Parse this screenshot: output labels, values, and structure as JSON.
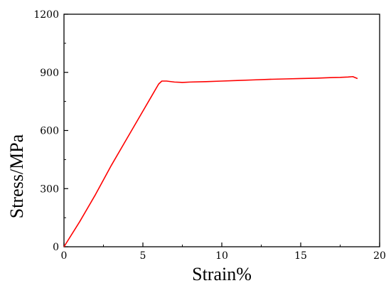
{
  "chart_data": {
    "type": "line",
    "title": "",
    "xlabel": "Strain%",
    "ylabel": "Stress/MPa",
    "xlim": [
      0,
      20
    ],
    "ylim": [
      0,
      1200
    ],
    "xticks": [
      0,
      5,
      10,
      15,
      20
    ],
    "yticks": [
      0,
      300,
      600,
      900,
      1200
    ],
    "xtick_labels": [
      "0",
      "5",
      "10",
      "15",
      "20"
    ],
    "ytick_labels": [
      "0",
      "300",
      "600",
      "900",
      "1200"
    ],
    "grid": false,
    "legend": "none",
    "series": [
      {
        "color": "#ff0000",
        "x": [
          0,
          1,
          2,
          3,
          4,
          5,
          5.5,
          6.0,
          6.2,
          6.5,
          7.0,
          7.5,
          8,
          9,
          10,
          11,
          12,
          13,
          14,
          15,
          16,
          17,
          17.5,
          18.0,
          18.3,
          18.6
        ],
        "y": [
          0,
          130,
          270,
          420,
          560,
          700,
          770,
          840,
          855,
          855,
          850,
          848,
          850,
          852,
          855,
          858,
          861,
          864,
          866,
          868,
          870,
          873,
          874,
          876,
          878,
          868
        ]
      }
    ]
  }
}
